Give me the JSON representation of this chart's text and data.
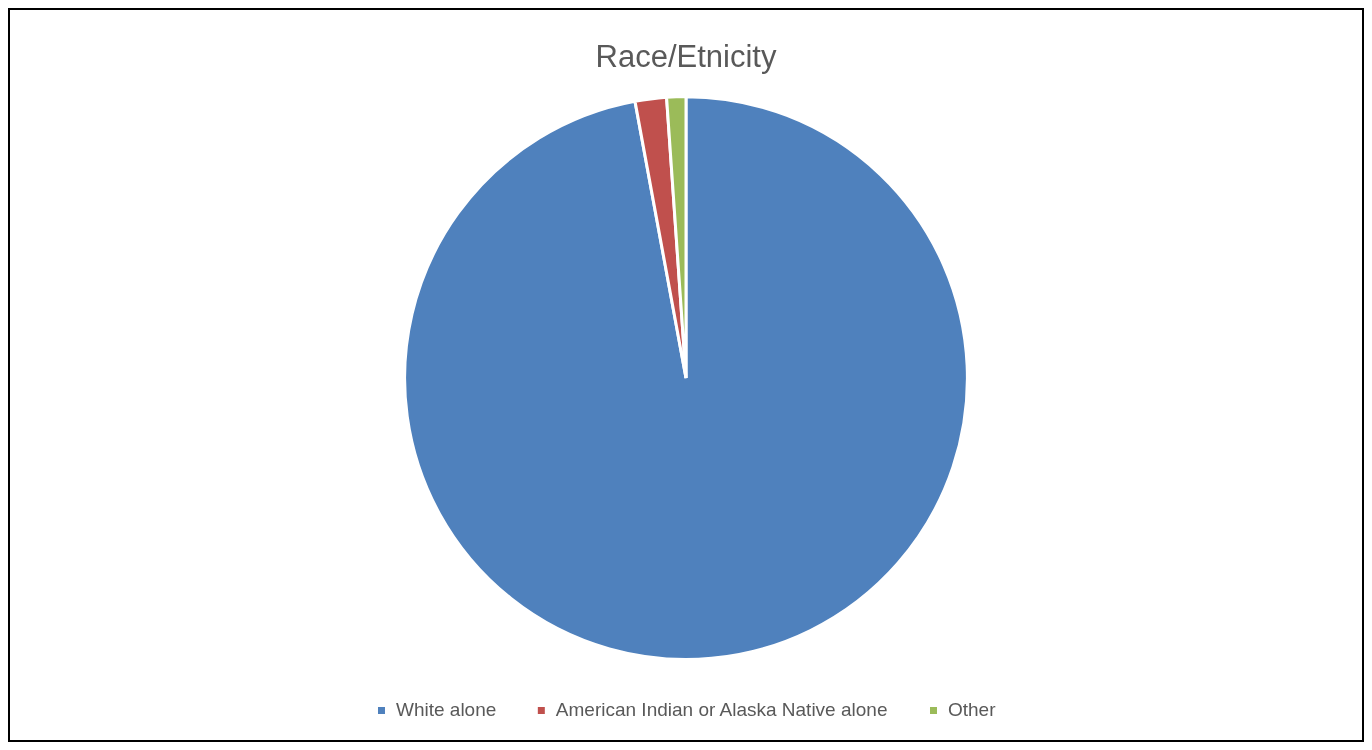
{
  "chart_data": {
    "type": "pie",
    "title": "Race/Etnicity",
    "categories": [
      "White alone",
      "American Indian or Alaska Native alone",
      "Other"
    ],
    "values": [
      97.1,
      1.8,
      1.1
    ],
    "colors": [
      "#4f81bd",
      "#c0504d",
      "#9bbb59"
    ],
    "legend": "bottom"
  }
}
